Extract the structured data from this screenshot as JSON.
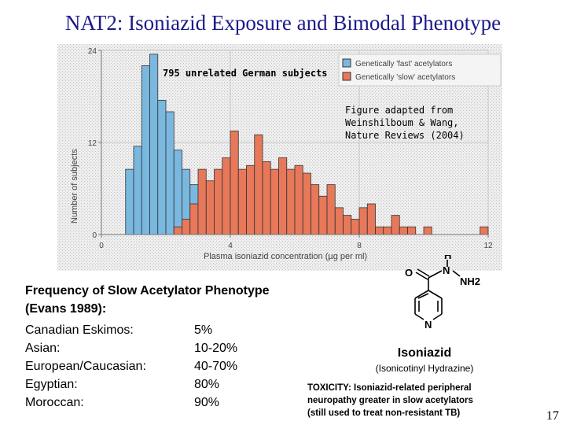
{
  "slide": {
    "title": "NAT2: Isoniazid Exposure and Bimodal Phenotype",
    "page_number": "17"
  },
  "chart_data": {
    "type": "bar",
    "subtitle": "795 unrelated German subjects",
    "annotation": [
      "Figure adapted from",
      "Weinshilboum & Wang,",
      "Nature Reviews (2004)"
    ],
    "xlabel": "Plasma isoniazid concentration (µg per ml)",
    "ylabel": "Number of subjects",
    "xlim": [
      0,
      12
    ],
    "ylim": [
      0,
      24
    ],
    "x_ticks": [
      0,
      4,
      8,
      12
    ],
    "y_ticks": [
      0,
      12,
      24
    ],
    "bin_width": 0.25,
    "grid": true,
    "legend_position": "top-right",
    "colors": {
      "fast": "#7ab8e0",
      "slow": "#e8785a",
      "stroke": "#333333"
    },
    "series": [
      {
        "name": "Genetically 'fast' acetylators",
        "bins": [
          {
            "x": 0.75,
            "y": 8.5
          },
          {
            "x": 1.0,
            "y": 11.5
          },
          {
            "x": 1.25,
            "y": 22.0
          },
          {
            "x": 1.5,
            "y": 23.5
          },
          {
            "x": 1.75,
            "y": 17.5
          },
          {
            "x": 2.0,
            "y": 16.0
          },
          {
            "x": 2.25,
            "y": 11.0
          },
          {
            "x": 2.5,
            "y": 8.5
          },
          {
            "x": 2.75,
            "y": 6.5
          },
          {
            "x": 3.0,
            "y": 5.5
          },
          {
            "x": 3.25,
            "y": 3.0
          },
          {
            "x": 3.5,
            "y": 1.5
          }
        ]
      },
      {
        "name": "Genetically 'slow' acetylators",
        "bins": [
          {
            "x": 2.25,
            "y": 1.0
          },
          {
            "x": 2.5,
            "y": 2.0
          },
          {
            "x": 2.75,
            "y": 4.0
          },
          {
            "x": 3.0,
            "y": 8.5
          },
          {
            "x": 3.25,
            "y": 7.0
          },
          {
            "x": 3.5,
            "y": 8.5
          },
          {
            "x": 3.75,
            "y": 10.0
          },
          {
            "x": 4.0,
            "y": 13.5
          },
          {
            "x": 4.25,
            "y": 8.5
          },
          {
            "x": 4.5,
            "y": 9.0
          },
          {
            "x": 4.75,
            "y": 13.0
          },
          {
            "x": 5.0,
            "y": 9.5
          },
          {
            "x": 5.25,
            "y": 8.5
          },
          {
            "x": 5.5,
            "y": 10.0
          },
          {
            "x": 5.75,
            "y": 8.5
          },
          {
            "x": 6.0,
            "y": 9.0
          },
          {
            "x": 6.25,
            "y": 8.0
          },
          {
            "x": 6.5,
            "y": 6.5
          },
          {
            "x": 6.75,
            "y": 5.0
          },
          {
            "x": 7.0,
            "y": 6.5
          },
          {
            "x": 7.25,
            "y": 3.5
          },
          {
            "x": 7.5,
            "y": 2.5
          },
          {
            "x": 7.75,
            "y": 2.0
          },
          {
            "x": 8.0,
            "y": 3.5
          },
          {
            "x": 8.25,
            "y": 4.0
          },
          {
            "x": 8.5,
            "y": 1.0
          },
          {
            "x": 8.75,
            "y": 1.0
          },
          {
            "x": 9.0,
            "y": 2.5
          },
          {
            "x": 9.25,
            "y": 1.0
          },
          {
            "x": 9.5,
            "y": 1.0
          },
          {
            "x": 10.0,
            "y": 1.0
          },
          {
            "x": 11.75,
            "y": 1.0
          }
        ]
      }
    ]
  },
  "frequency": {
    "title_line1": "Frequency of Slow Acetylator Phenotype",
    "title_line2": "(Evans 1989):",
    "rows": [
      {
        "population": "Canadian Eskimos:",
        "value": "5%"
      },
      {
        "population": "Asian:",
        "value": "10-20%"
      },
      {
        "population": "European/Caucasian:",
        "value": "40-70%"
      },
      {
        "population": "Egyptian:",
        "value": "80%"
      },
      {
        "population": "Moroccan:",
        "value": "90%"
      }
    ]
  },
  "molecule": {
    "atom_O": "O",
    "atom_N_amide": "N",
    "atom_H": "H",
    "atom_NH2": "NH2",
    "atom_N_ring": "N",
    "name": "Isoniazid",
    "alt_name": "(Isonicotinyl Hydrazine)"
  },
  "toxicity": {
    "line1": "TOXICITY: Isoniazid-related peripheral",
    "line2": "neuropathy greater in slow acetylators",
    "line3": "(still used to treat non-resistant TB)"
  }
}
